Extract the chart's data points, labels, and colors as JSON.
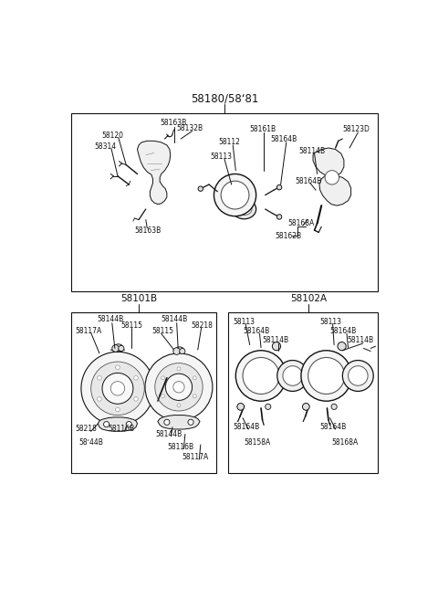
{
  "bg_color": "#ffffff",
  "line_color": "#000000",
  "fig_width": 4.8,
  "fig_height": 6.57,
  "dpi": 100,
  "title_label": "58180/58ʻ81",
  "section_label_1": "58101B",
  "section_label_2": "58102A"
}
